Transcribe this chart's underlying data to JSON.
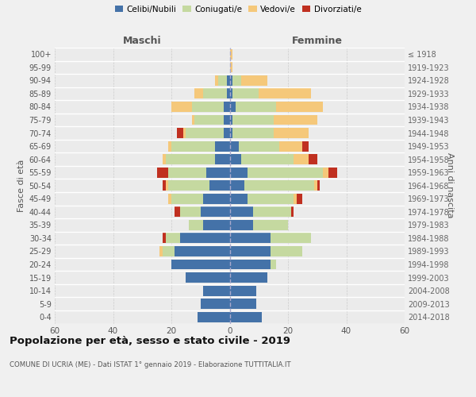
{
  "age_groups": [
    "0-4",
    "5-9",
    "10-14",
    "15-19",
    "20-24",
    "25-29",
    "30-34",
    "35-39",
    "40-44",
    "45-49",
    "50-54",
    "55-59",
    "60-64",
    "65-69",
    "70-74",
    "75-79",
    "80-84",
    "85-89",
    "90-94",
    "95-99",
    "100+"
  ],
  "birth_years": [
    "2014-2018",
    "2009-2013",
    "2004-2008",
    "1999-2003",
    "1994-1998",
    "1989-1993",
    "1984-1988",
    "1979-1983",
    "1974-1978",
    "1969-1973",
    "1964-1968",
    "1959-1963",
    "1954-1958",
    "1949-1953",
    "1944-1948",
    "1939-1943",
    "1934-1938",
    "1929-1933",
    "1924-1928",
    "1919-1923",
    "≤ 1918"
  ],
  "male": {
    "celibi": [
      11,
      10,
      9,
      15,
      20,
      19,
      17,
      9,
      10,
      9,
      7,
      8,
      5,
      5,
      2,
      2,
      2,
      1,
      1,
      0,
      0
    ],
    "coniugati": [
      0,
      0,
      0,
      0,
      0,
      4,
      5,
      5,
      7,
      11,
      14,
      13,
      17,
      15,
      13,
      10,
      11,
      8,
      3,
      0,
      0
    ],
    "vedovi": [
      0,
      0,
      0,
      0,
      0,
      1,
      0,
      0,
      0,
      1,
      1,
      0,
      1,
      1,
      1,
      1,
      7,
      3,
      1,
      0,
      0
    ],
    "divorziati": [
      0,
      0,
      0,
      0,
      0,
      0,
      1,
      0,
      2,
      0,
      1,
      4,
      0,
      0,
      2,
      0,
      0,
      0,
      0,
      0,
      0
    ]
  },
  "female": {
    "nubili": [
      11,
      9,
      9,
      13,
      14,
      14,
      14,
      8,
      8,
      6,
      5,
      6,
      4,
      3,
      1,
      1,
      2,
      1,
      1,
      0,
      0
    ],
    "coniugate": [
      0,
      0,
      0,
      0,
      2,
      11,
      14,
      12,
      13,
      16,
      24,
      26,
      18,
      14,
      14,
      14,
      14,
      9,
      3,
      0,
      0
    ],
    "vedove": [
      0,
      0,
      0,
      0,
      0,
      0,
      0,
      0,
      0,
      1,
      1,
      2,
      5,
      8,
      12,
      15,
      16,
      18,
      9,
      1,
      1
    ],
    "divorziate": [
      0,
      0,
      0,
      0,
      0,
      0,
      0,
      0,
      1,
      2,
      1,
      3,
      3,
      2,
      0,
      0,
      0,
      0,
      0,
      0,
      0
    ]
  },
  "colors": {
    "celibi": "#4472a8",
    "coniugati": "#c5d9a0",
    "vedovi": "#f5c87a",
    "divorziati": "#c03020"
  },
  "xlim": 60,
  "title": "Popolazione per età, sesso e stato civile - 2019",
  "subtitle": "COMUNE DI UCRIA (ME) - Dati ISTAT 1° gennaio 2019 - Elaborazione TUTTITALIA.IT",
  "ylabel_left": "Fasce di età",
  "ylabel_right": "Anni di nascita",
  "header_left": "Maschi",
  "header_right": "Femmine",
  "legend_labels": [
    "Celibi/Nubili",
    "Coniugati/e",
    "Vedovi/e",
    "Divorziati/e"
  ],
  "bg_color": "#f0f0f0",
  "plot_bg": "#ebebeb",
  "bar_height": 0.78
}
